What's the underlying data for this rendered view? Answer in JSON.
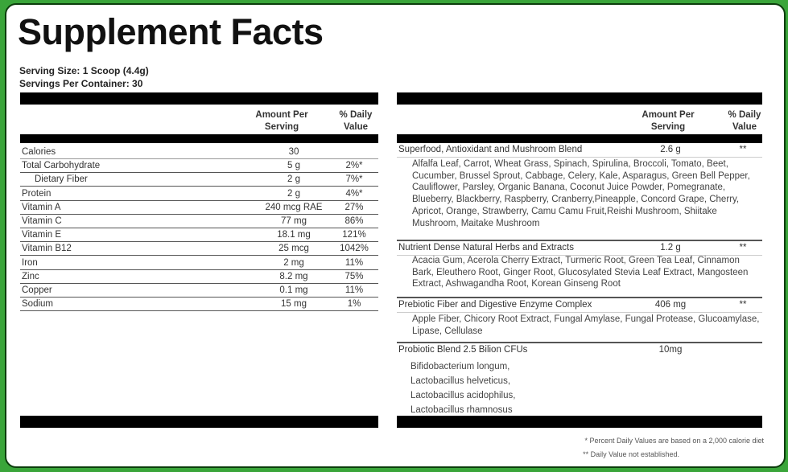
{
  "title": "Supplement Facts",
  "serving_size": "Serving Size: 1 Scoop (4.4g)",
  "servings_per_container": "Servings Per Container: 30",
  "headers": {
    "amount": "Amount Per Serving",
    "daily": "% Daily Value"
  },
  "nutrients": [
    {
      "name": "Calories",
      "amount": "30",
      "dv": ""
    },
    {
      "name": "Total Carbohydrate",
      "amount": "5 g",
      "dv": "2%*"
    },
    {
      "name": "Dietary Fiber",
      "amount": "2 g",
      "dv": "7%*"
    },
    {
      "name": "Protein",
      "amount": "2 g",
      "dv": "4%*"
    },
    {
      "name": "Vitamin A",
      "amount": "240 mcg RAE",
      "dv": "27%"
    },
    {
      "name": "Vitamin C",
      "amount": "77 mg",
      "dv": "86%"
    },
    {
      "name": "Vitamin E",
      "amount": "18.1 mg",
      "dv": "121%"
    },
    {
      "name": "Vitamin B12",
      "amount": "25 mcg",
      "dv": "1042%"
    },
    {
      "name": "Iron",
      "amount": "2 mg",
      "dv": "11%"
    },
    {
      "name": "Zinc",
      "amount": "8.2 mg",
      "dv": "75%"
    },
    {
      "name": "Copper",
      "amount": "0.1 mg",
      "dv": "11%"
    },
    {
      "name": "Sodium",
      "amount": "15 mg",
      "dv": "1%"
    }
  ],
  "blends": [
    {
      "name": "Superfood, Antioxidant and Mushroom Blend",
      "amount": "2.6 g",
      "dv": "**",
      "ingredients": "Alfalfa Leaf, Carrot, Wheat Grass,  Spinach, Spirulina, Broccoli, Tomato, Beet, Cucumber, Brussel Sprout, Cabbage, Celery, Kale, Asparagus, Green Bell Pepper, Cauliflower, Parsley, Organic Banana, Coconut Juice Powder, Pomegranate, Blueberry, Blackberry, Raspberry, Cranberry,Pineapple, Concord Grape, Cherry, Apricot, Orange, Strawberry, Camu Camu Fruit,Reishi Mushroom, Shiitake Mushroom, Maitake Mushroom"
    },
    {
      "name": "Nutrient Dense Natural Herbs and Extracts",
      "amount": "1.2 g",
      "dv": "**",
      "ingredients": "Acacia Gum, Acerola Cherry Extract, Turmeric Root, Green Tea Leaf, Cinnamon Bark, Eleuthero Root, Ginger Root, Glucosylated Stevia Leaf Extract, Mangosteen Extract, Ashwagandha Root, Korean Ginseng Root"
    },
    {
      "name": "Prebiotic Fiber and Digestive Enzyme Complex",
      "amount": "406 mg",
      "dv": "**",
      "ingredients": "Apple Fiber, Chicory Root Extract, Fungal Amylase, Fungal Protease, Glucoamylase, Lipase, Cellulase"
    },
    {
      "name": "Probiotic Blend 2.5 Bilion CFUs",
      "amount": "10mg",
      "dv": "",
      "strains": [
        "Bifidobacterium longum,",
        "Lactobacillus helveticus,",
        "Lactobacillus acidophilus,",
        "Lactobacillus rhamnosus"
      ]
    }
  ],
  "footnotes": [
    "* Percent Daily Values are based on a 2,000 calorie diet",
    "** Daily Value not established."
  ],
  "colors": {
    "background": "#3aa53a",
    "panel": "#ffffff",
    "bars": "#000000"
  }
}
